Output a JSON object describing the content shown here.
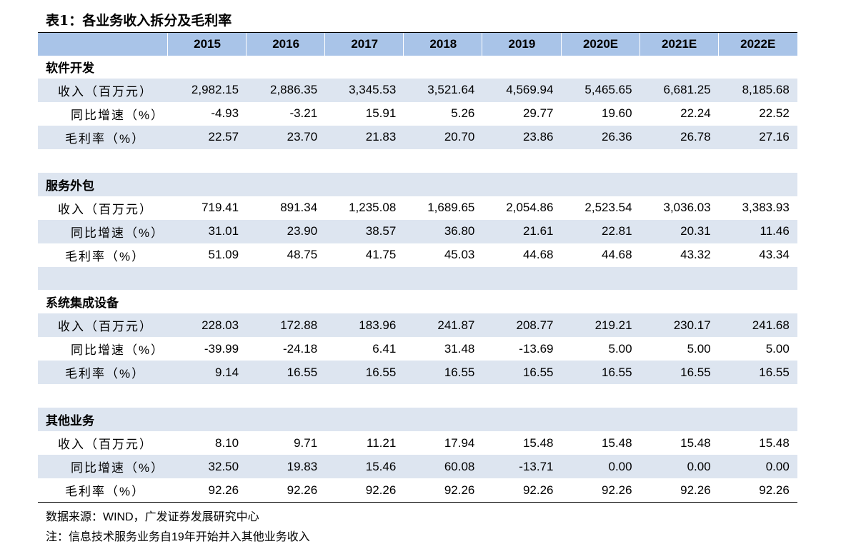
{
  "title": "表1：各业务收入拆分及毛利率",
  "table": {
    "header": [
      "2015",
      "2016",
      "2017",
      "2018",
      "2019",
      "2020E",
      "2021E",
      "2022E"
    ],
    "sections": [
      {
        "name": "软件开发",
        "rows": [
          {
            "label": "收入（百万元）",
            "values": [
              "2,982.15",
              "2,886.35",
              "3,345.53",
              "3,521.64",
              "4,569.94",
              "5,465.65",
              "6,681.25",
              "8,185.68"
            ]
          },
          {
            "label": "同比增速（%）",
            "values": [
              "-4.93",
              "-3.21",
              "15.91",
              "5.26",
              "29.77",
              "19.60",
              "22.24",
              "22.52"
            ]
          },
          {
            "label": "毛利率（%）",
            "values": [
              "22.57",
              "23.70",
              "21.83",
              "20.70",
              "23.86",
              "26.36",
              "26.78",
              "27.16"
            ]
          }
        ]
      },
      {
        "name": "服务外包",
        "rows": [
          {
            "label": "收入（百万元）",
            "values": [
              "719.41",
              "891.34",
              "1,235.08",
              "1,689.65",
              "2,054.86",
              "2,523.54",
              "3,036.03",
              "3,383.93"
            ]
          },
          {
            "label": "同比增速（%）",
            "values": [
              "31.01",
              "23.90",
              "38.57",
              "36.80",
              "21.61",
              "22.81",
              "20.31",
              "11.46"
            ]
          },
          {
            "label": "毛利率（%）",
            "values": [
              "51.09",
              "48.75",
              "41.75",
              "45.03",
              "44.68",
              "44.68",
              "43.32",
              "43.34"
            ]
          }
        ]
      },
      {
        "name": "系统集成设备",
        "rows": [
          {
            "label": "收入（百万元）",
            "values": [
              "228.03",
              "172.88",
              "183.96",
              "241.87",
              "208.77",
              "219.21",
              "230.17",
              "241.68"
            ]
          },
          {
            "label": "同比增速（%）",
            "values": [
              "-39.99",
              "-24.18",
              "6.41",
              "31.48",
              "-13.69",
              "5.00",
              "5.00",
              "5.00"
            ]
          },
          {
            "label": "毛利率（%）",
            "values": [
              "9.14",
              "16.55",
              "16.55",
              "16.55",
              "16.55",
              "16.55",
              "16.55",
              "16.55"
            ]
          }
        ]
      },
      {
        "name": "其他业务",
        "rows": [
          {
            "label": "收入（百万元）",
            "values": [
              "8.10",
              "9.71",
              "11.21",
              "17.94",
              "15.48",
              "15.48",
              "15.48",
              "15.48"
            ]
          },
          {
            "label": "同比增速（%）",
            "values": [
              "32.50",
              "19.83",
              "15.46",
              "60.08",
              "-13.71",
              "0.00",
              "0.00",
              "0.00"
            ]
          },
          {
            "label": "毛利率（%）",
            "values": [
              "92.26",
              "92.26",
              "92.26",
              "92.26",
              "92.26",
              "92.26",
              "92.26",
              "92.26"
            ]
          }
        ]
      }
    ]
  },
  "source": "数据来源：WIND，广发证券发展研究中心",
  "note": "注：信息技术服务业务自19年开始并入其他业务收入"
}
